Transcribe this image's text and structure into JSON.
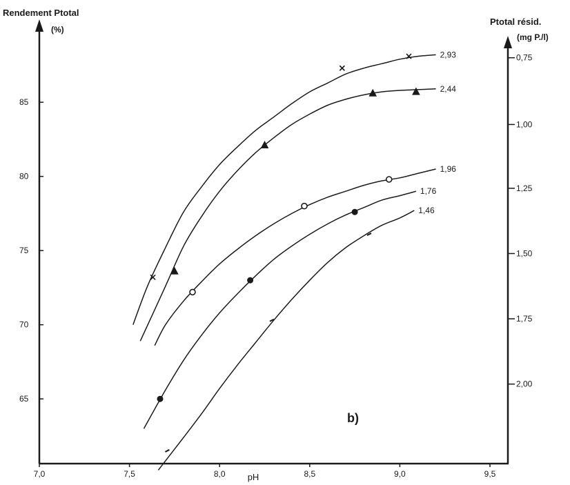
{
  "chart_data": {
    "type": "line",
    "title": "",
    "panel_label": "b)",
    "xlabel": "pH",
    "ylabel_left": [
      "Rendement Ptotal",
      "(%)"
    ],
    "ylabel_right": [
      "Ptotal résid.",
      "(mg P./l)"
    ],
    "xlim": [
      7.0,
      9.5
    ],
    "ylim": [
      60,
      90
    ],
    "grid": false,
    "x_ticks": [
      {
        "value": 7.0,
        "label": "7,0"
      },
      {
        "value": 7.5,
        "label": "7,5"
      },
      {
        "value": 8.0,
        "label": "8,0"
      },
      {
        "value": 8.5,
        "label": "8,5"
      },
      {
        "value": 9.0,
        "label": "9,0"
      },
      {
        "value": 9.5,
        "label": "9,5"
      }
    ],
    "y_ticks_left": [
      {
        "value": 65,
        "label": "65"
      },
      {
        "value": 70,
        "label": "70"
      },
      {
        "value": 75,
        "label": "75"
      },
      {
        "value": 80,
        "label": "80"
      },
      {
        "value": 85,
        "label": "85"
      }
    ],
    "y_ticks_right": [
      {
        "value": 88.0,
        "label": "0,75"
      },
      {
        "value": 83.5,
        "label": "1,00"
      },
      {
        "value": 79.2,
        "label": "1,25"
      },
      {
        "value": 74.8,
        "label": "1,50"
      },
      {
        "value": 70.4,
        "label": "1,75"
      },
      {
        "value": 66.0,
        "label": "2,00"
      }
    ],
    "series": [
      {
        "name": "2,93",
        "marker": "x",
        "curve": [
          [
            7.52,
            70.0
          ],
          [
            7.6,
            72.6
          ],
          [
            7.7,
            75.2
          ],
          [
            7.8,
            77.6
          ],
          [
            7.9,
            79.3
          ],
          [
            8.0,
            80.8
          ],
          [
            8.1,
            82.0
          ],
          [
            8.2,
            83.1
          ],
          [
            8.3,
            84.0
          ],
          [
            8.4,
            84.9
          ],
          [
            8.5,
            85.7
          ],
          [
            8.6,
            86.3
          ],
          [
            8.7,
            86.9
          ],
          [
            8.8,
            87.3
          ],
          [
            8.9,
            87.6
          ],
          [
            9.0,
            87.9
          ],
          [
            9.1,
            88.1
          ],
          [
            9.2,
            88.2
          ]
        ],
        "points": [
          [
            7.63,
            73.2
          ],
          [
            8.68,
            87.3
          ],
          [
            9.05,
            88.1
          ]
        ]
      },
      {
        "name": "2,44",
        "marker": "triangle",
        "curve": [
          [
            7.56,
            68.9
          ],
          [
            7.7,
            72.6
          ],
          [
            7.8,
            75.3
          ],
          [
            7.9,
            77.3
          ],
          [
            8.0,
            79.0
          ],
          [
            8.1,
            80.4
          ],
          [
            8.2,
            81.6
          ],
          [
            8.3,
            82.6
          ],
          [
            8.4,
            83.5
          ],
          [
            8.5,
            84.2
          ],
          [
            8.6,
            84.8
          ],
          [
            8.7,
            85.2
          ],
          [
            8.8,
            85.5
          ],
          [
            8.9,
            85.7
          ],
          [
            9.0,
            85.8
          ],
          [
            9.1,
            85.85
          ],
          [
            9.2,
            85.9
          ]
        ],
        "points": [
          [
            7.75,
            73.6
          ],
          [
            8.25,
            82.1
          ],
          [
            8.85,
            85.6
          ],
          [
            9.09,
            85.7
          ]
        ]
      },
      {
        "name": "1,96",
        "marker": "circle",
        "curve": [
          [
            7.64,
            68.6
          ],
          [
            7.7,
            70.0
          ],
          [
            7.8,
            71.6
          ],
          [
            7.9,
            72.9
          ],
          [
            8.0,
            74.1
          ],
          [
            8.1,
            75.1
          ],
          [
            8.2,
            76.0
          ],
          [
            8.3,
            76.8
          ],
          [
            8.4,
            77.5
          ],
          [
            8.5,
            78.1
          ],
          [
            8.6,
            78.6
          ],
          [
            8.7,
            79.0
          ],
          [
            8.8,
            79.4
          ],
          [
            8.9,
            79.7
          ],
          [
            9.0,
            79.9
          ],
          [
            9.1,
            80.2
          ],
          [
            9.2,
            80.5
          ]
        ],
        "points": [
          [
            7.85,
            72.2
          ],
          [
            8.47,
            78.0
          ],
          [
            8.94,
            79.8
          ]
        ]
      },
      {
        "name": "1,76",
        "marker": "dot",
        "curve": [
          [
            7.58,
            63.0
          ],
          [
            7.7,
            65.6
          ],
          [
            7.8,
            67.6
          ],
          [
            7.9,
            69.3
          ],
          [
            8.0,
            70.8
          ],
          [
            8.1,
            72.1
          ],
          [
            8.2,
            73.3
          ],
          [
            8.3,
            74.4
          ],
          [
            8.4,
            75.3
          ],
          [
            8.5,
            76.1
          ],
          [
            8.6,
            76.8
          ],
          [
            8.7,
            77.4
          ],
          [
            8.8,
            77.9
          ],
          [
            8.9,
            78.4
          ],
          [
            9.0,
            78.7
          ],
          [
            9.09,
            79.0
          ]
        ],
        "points": [
          [
            7.67,
            65.0
          ],
          [
            8.17,
            73.0
          ],
          [
            8.75,
            77.6
          ]
        ]
      },
      {
        "name": "1,46",
        "marker": "tick",
        "curve": [
          [
            7.66,
            60.2
          ],
          [
            7.8,
            62.4
          ],
          [
            7.9,
            64.0
          ],
          [
            8.0,
            65.7
          ],
          [
            8.1,
            67.3
          ],
          [
            8.2,
            68.8
          ],
          [
            8.3,
            70.3
          ],
          [
            8.4,
            71.7
          ],
          [
            8.5,
            73.0
          ],
          [
            8.6,
            74.2
          ],
          [
            8.7,
            75.2
          ],
          [
            8.8,
            76.0
          ],
          [
            8.9,
            76.7
          ],
          [
            9.0,
            77.2
          ],
          [
            9.08,
            77.7
          ]
        ],
        "points": [
          [
            7.71,
            61.5
          ],
          [
            8.29,
            70.3
          ],
          [
            8.83,
            76.1
          ]
        ]
      }
    ]
  }
}
